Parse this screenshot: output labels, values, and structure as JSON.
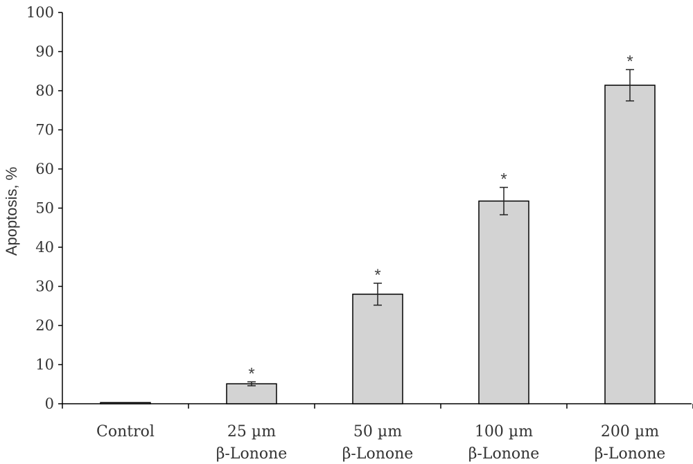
{
  "chart_data": {
    "type": "bar",
    "title": "",
    "xlabel": "",
    "ylabel": "Apoptosis, %",
    "ylim": [
      0,
      100
    ],
    "yticks": [
      0,
      10,
      20,
      30,
      40,
      50,
      60,
      70,
      80,
      90,
      100
    ],
    "grid": false,
    "legend": "none",
    "categories": [
      [
        "Control"
      ],
      [
        "25 µm",
        "β-Lonone"
      ],
      [
        "50 µm",
        "β-Lonone"
      ],
      [
        "100 µm",
        "β-Lonone"
      ],
      [
        "200 µm",
        "β-Lonone"
      ]
    ],
    "values": [
      0.3,
      5.1,
      28.0,
      51.8,
      81.4
    ],
    "error": [
      0,
      0.5,
      2.8,
      3.5,
      4.0
    ],
    "annotations": [
      "",
      "*",
      "*",
      "*",
      "*"
    ],
    "colors": {
      "bar_fill": "#d3d3d3",
      "bar_stroke": "#000000",
      "axis": "#000000",
      "text": "#333333"
    }
  }
}
